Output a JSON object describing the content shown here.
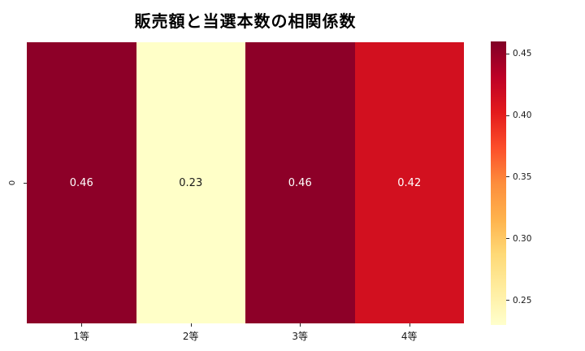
{
  "chart_data": {
    "type": "heatmap",
    "title": "販売額と当選本数の相関係数",
    "x_categories": [
      "1等",
      "2等",
      "3等",
      "4等"
    ],
    "y_categories": [
      "0"
    ],
    "values": [
      [
        0.46,
        0.23,
        0.46,
        0.42
      ]
    ],
    "vmin": 0.23,
    "vmax": 0.46,
    "colormap": "YlOrRd",
    "colormap_stops": [
      "#ffffcc",
      "#ffeda0",
      "#fed976",
      "#feb24c",
      "#fd8d3c",
      "#fc4e2a",
      "#e31a1c",
      "#bd0026",
      "#800026"
    ],
    "colorbar_ticks": [
      0.45,
      0.4,
      0.35,
      0.3,
      0.25
    ],
    "cell_colors": [
      "#8d0028",
      "#ffffc8",
      "#8d0028",
      "#d2101f"
    ],
    "cell_text_colors": [
      "#ffffff",
      "#1a1a1a",
      "#ffffff",
      "#ffffff"
    ],
    "legend_position": "right",
    "grid": false
  }
}
